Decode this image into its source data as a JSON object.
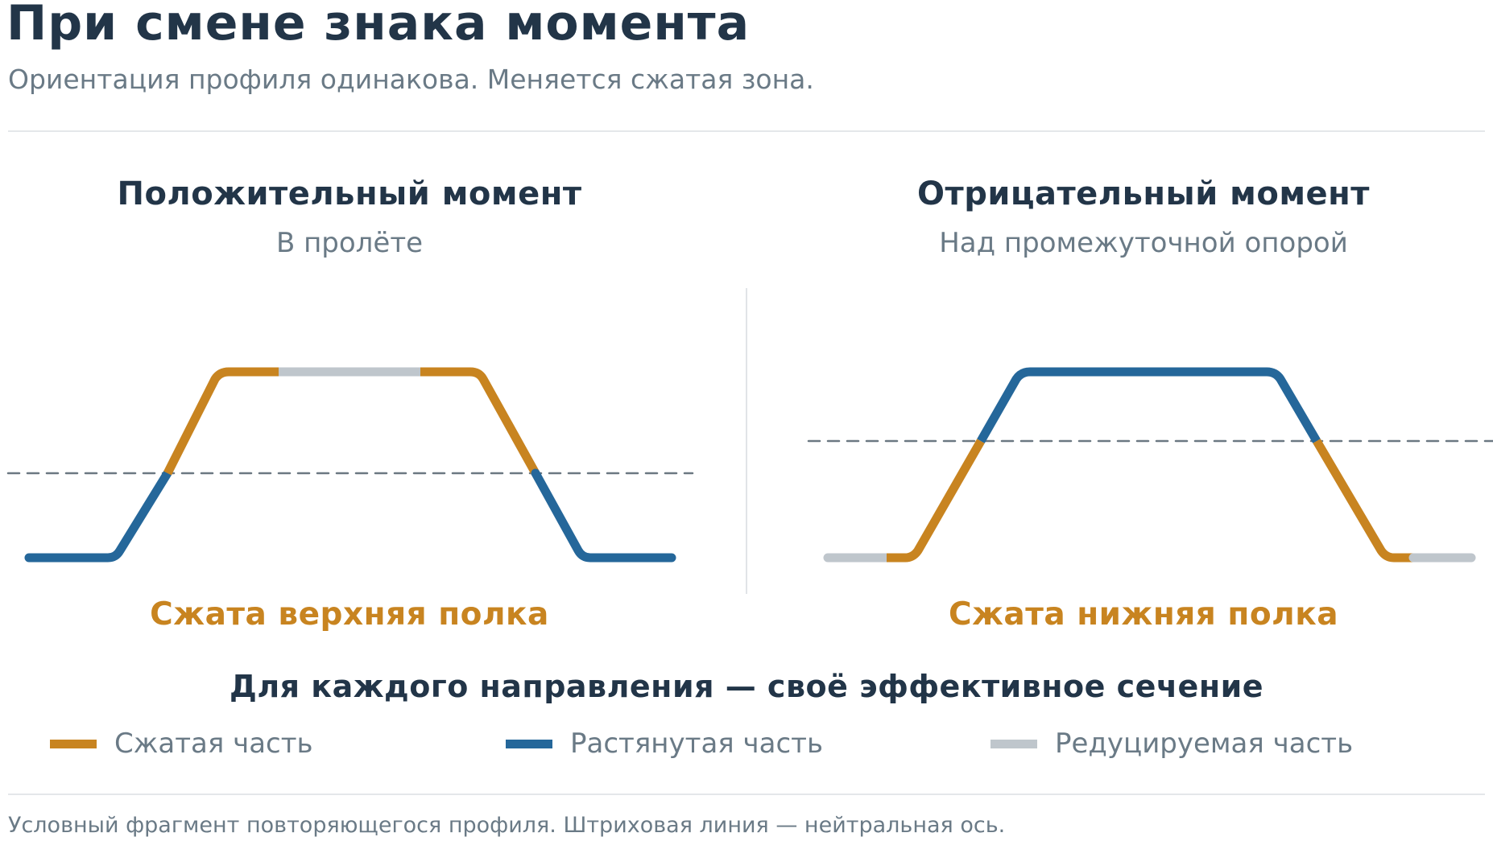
{
  "header": {
    "title": "При смене знака момента",
    "subtitle": "Ориентация профиля одинакова. Меняется сжатая зона."
  },
  "panels": [
    {
      "title": "Положительный момент",
      "subtitle": "В пролёте",
      "caption": "Сжата верхняя полка"
    },
    {
      "title": "Отрицательный момент",
      "subtitle": "Над промежуточной опорой",
      "caption": "Сжата нижняя полка"
    }
  ],
  "summary": "Для каждого направления — своё эффективное сечение",
  "legend": [
    {
      "label": "Сжатая часть",
      "color": "#c88420"
    },
    {
      "label": "Растянутая часть",
      "color": "#25679a"
    },
    {
      "label": "Редуцируемая часть",
      "color": "#bfc6cc"
    }
  ],
  "colors": {
    "compressed": "#c88420",
    "tension": "#25679a",
    "reduced": "#bfc6cc",
    "neutral_axis": "#6b7882"
  },
  "footnote": "Условный фрагмент повторяющегося профиля. Штриховая линия — нейтральная ось."
}
